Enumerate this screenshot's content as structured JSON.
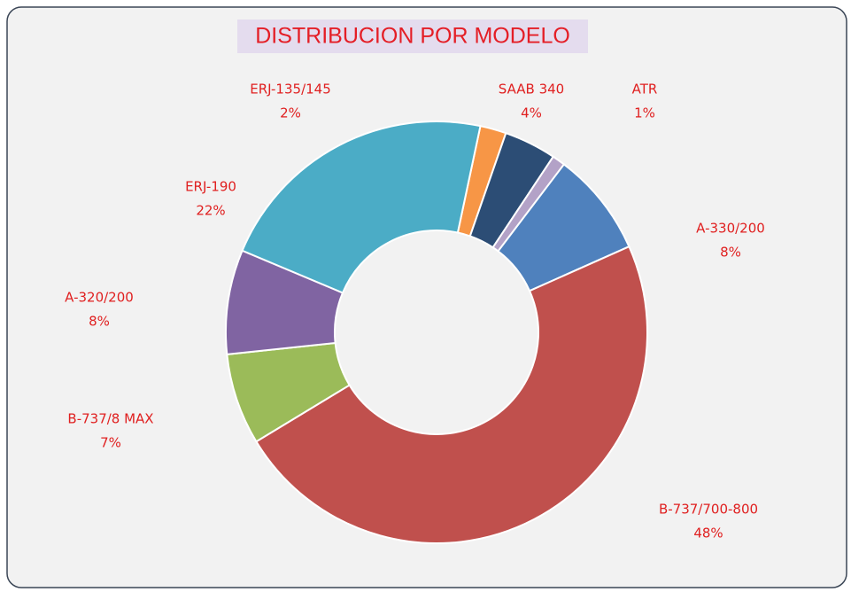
{
  "chart_data": {
    "type": "donut",
    "title": "DISTRIBUCION POR MODELO",
    "categories": [
      "ERJ-135/145",
      "SAAB 340",
      "ATR",
      "A-330/200",
      "B-737/700-800",
      "B-737/8 MAX",
      "A-320/200",
      "ERJ-190"
    ],
    "values": [
      2,
      4,
      1,
      8,
      48,
      7,
      8,
      22
    ],
    "value_labels": [
      "2%",
      "4%",
      "1%",
      "8%",
      "48%",
      "7%",
      "8%",
      "22%"
    ],
    "colors": [
      "#f79646",
      "#2c4d75",
      "#b3a2c7",
      "#4f81bd",
      "#c0504d",
      "#9bbb59",
      "#8064a2",
      "#4bacc6"
    ]
  }
}
